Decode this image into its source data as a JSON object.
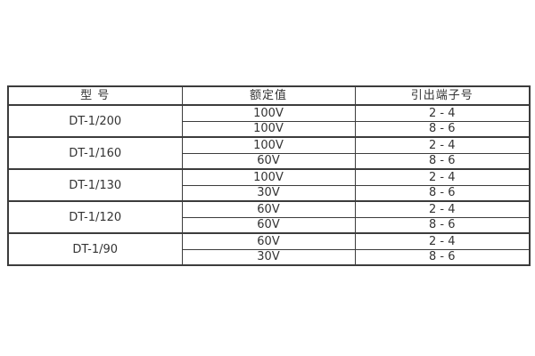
{
  "table": {
    "headers": [
      "型 号",
      "额定值",
      "引出端子号"
    ],
    "groups": [
      {
        "model": "DT-1/200",
        "rows": [
          [
            "100V",
            "2 - 4"
          ],
          [
            "100V",
            "8 - 6"
          ]
        ]
      },
      {
        "model": "DT-1/160",
        "rows": [
          [
            "100V",
            "2 - 4"
          ],
          [
            "60V",
            "8 - 6"
          ]
        ]
      },
      {
        "model": "DT-1/130",
        "rows": [
          [
            "100V",
            "2 - 4"
          ],
          [
            "30V",
            "8 - 6"
          ]
        ]
      },
      {
        "model": "DT-1/120",
        "rows": [
          [
            "60V",
            "2 - 4"
          ],
          [
            "60V",
            "8 - 6"
          ]
        ]
      },
      {
        "model": "DT-1/90",
        "rows": [
          [
            "60V",
            "2 - 4"
          ],
          [
            "30V",
            "8 - 6"
          ]
        ]
      }
    ]
  },
  "colors": {
    "border": "#3c3c3c",
    "text": "#333333",
    "background": "#ffffff"
  }
}
